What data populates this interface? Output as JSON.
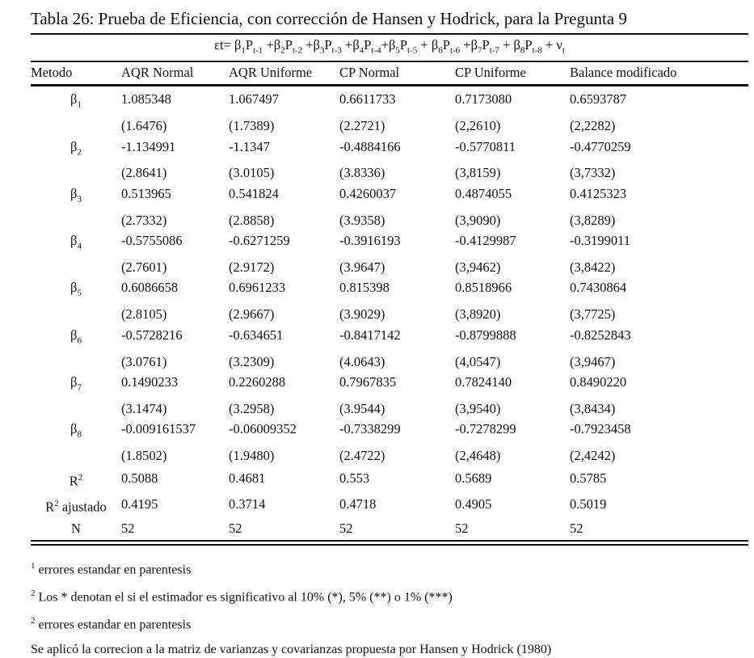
{
  "page": {
    "background": "#ffffff",
    "text_color": "#121212"
  },
  "table": {
    "title": "Tabla 26: Prueba de Eficiencia, con corrección de Hansen y Hodrick, para la Pregunta 9",
    "equation_tokens": [
      {
        "b": "εt= "
      },
      {
        "b": "β",
        "s": "1"
      },
      {
        "b": "P",
        "s": "t-1"
      },
      {
        "b": " +"
      },
      {
        "b": "β",
        "s": "2"
      },
      {
        "b": "P",
        "s": "t-2"
      },
      {
        "b": " +"
      },
      {
        "b": "β",
        "s": "3"
      },
      {
        "b": "P",
        "s": "t-3"
      },
      {
        "b": " +"
      },
      {
        "b": "β",
        "s": "4"
      },
      {
        "b": "P",
        "s": "t-4"
      },
      {
        "b": "+"
      },
      {
        "b": "β",
        "s": "5"
      },
      {
        "b": "P",
        "s": "t-5"
      },
      {
        "b": " + "
      },
      {
        "b": "β",
        "s": "6"
      },
      {
        "b": "P",
        "s": "t-6"
      },
      {
        "b": " +"
      },
      {
        "b": "β",
        "s": "7"
      },
      {
        "b": "P",
        "s": "t-7"
      },
      {
        "b": " + "
      },
      {
        "b": "β",
        "s": "8"
      },
      {
        "b": "P",
        "s": "t-8"
      },
      {
        "b": " + "
      },
      {
        "b": "ν",
        "s": "t"
      }
    ],
    "columns": [
      "Metodo",
      "AQR Normal",
      "AQR Uniforme",
      "CP Normal",
      "CP Uniforme",
      "Balance modificado"
    ],
    "beta_rows": [
      {
        "param": "β",
        "sub": "1",
        "estimates": [
          "1.085348",
          "1.067497",
          "0.6611733",
          "0.7173080",
          "0.6593787"
        ],
        "std_errors": [
          "(1.6476)",
          "(1.7389)",
          "(2.2721)",
          "(2,2610)",
          "(2,2282)"
        ]
      },
      {
        "param": "β",
        "sub": "2",
        "estimates": [
          "-1.134991",
          "-1.1347",
          "-0.4884166",
          "-0.5770811",
          "-0.4770259"
        ],
        "std_errors": [
          "(2.8641)",
          "(3.0105)",
          "(3.8336)",
          "(3,8159)",
          "(3,7332)"
        ]
      },
      {
        "param": "β",
        "sub": "3",
        "estimates": [
          "0.513965",
          "0.541824",
          "0.4260037",
          "0.4874055",
          "0.4125323"
        ],
        "std_errors": [
          "(2.7332)",
          "(2.8858)",
          "(3.9358)",
          "(3,9090)",
          "(3,8289)"
        ]
      },
      {
        "param": "β",
        "sub": "4",
        "estimates": [
          "-0.5755086",
          "-0.6271259",
          "-0.3916193",
          "-0.4129987",
          "-0.3199011"
        ],
        "std_errors": [
          "(2.7601)",
          "(2.9172)",
          "(3.9647)",
          "(3,9462)",
          "(3,8422)"
        ]
      },
      {
        "param": "β",
        "sub": "5",
        "estimates": [
          "0.6086658",
          "0.6961233",
          "0.815398",
          "0.8518966",
          "0.7430864"
        ],
        "std_errors": [
          "(2.8105)",
          "(2.9667)",
          "(3.9029)",
          "(3,8920)",
          "(3,7725)"
        ]
      },
      {
        "param": "β",
        "sub": "6",
        "estimates": [
          "-0.5728216",
          "-0.634651",
          "-0.8417142",
          "-0.8799888",
          "-0.8252843"
        ],
        "std_errors": [
          "(3.0761)",
          "(3.2309)",
          "(4.0643)",
          "(4,0547)",
          "(3,9467)"
        ]
      },
      {
        "param": "β",
        "sub": "7",
        "estimates": [
          "0.1490233",
          "0.2260288",
          "0.7967835",
          "0.7824140",
          "0.8490220"
        ],
        "std_errors": [
          "(3.1474)",
          "(3.2958)",
          "(3.9544)",
          "(3,9540)",
          "(3,8434)"
        ]
      },
      {
        "param": "β",
        "sub": "8",
        "estimates": [
          "-0.009161537",
          "-0.06009352",
          "-0.7338299",
          "-0.7278299",
          "-0.7923458"
        ],
        "std_errors": [
          "(1.8502)",
          "(1.9480)",
          "(2.4722)",
          "(2,4648)",
          "(2,4242)"
        ]
      }
    ],
    "stat_rows": [
      {
        "base": "R",
        "sup": "2",
        "rest": "",
        "kind": "stat",
        "values": [
          "0.5088",
          "0.4681",
          "0.553",
          "0.5689",
          "0.5785"
        ]
      },
      {
        "base": "R",
        "sup": "2",
        "rest": " ajustado",
        "kind": "stat",
        "values": [
          "0.4195",
          "0.3714",
          "0.4718",
          "0.4905",
          "0.5019"
        ]
      },
      {
        "base": "N",
        "sup": "",
        "rest": "",
        "kind": "nrow",
        "values": [
          "52",
          "52",
          "52",
          "52",
          "52"
        ]
      }
    ],
    "footnotes": [
      {
        "marker": "1",
        "text": "errores estandar en parentesis"
      },
      {
        "marker": "2",
        "text": "Los * denotan el si el estimador es significativo al 10% (*), 5% (**) o 1% (***)"
      },
      {
        "marker": "2",
        "text": "errores estandar en parentesis"
      },
      {
        "marker": "",
        "text": "Se aplicó la correcion a la matriz de varianzas y covarianzas propuesta por Hansen y Hodrick (1980)"
      }
    ]
  }
}
